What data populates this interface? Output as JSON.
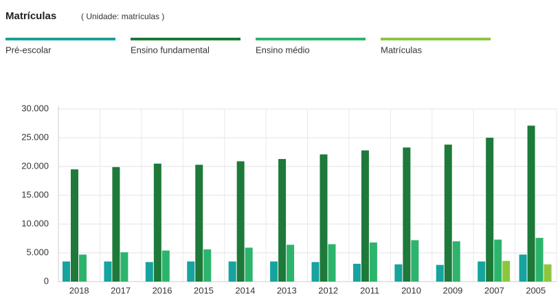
{
  "chart_data": {
    "type": "bar",
    "title": "Matrículas",
    "subtitle": "( Unidade: matrículas )",
    "categories": [
      "2018",
      "2017",
      "2016",
      "2015",
      "2014",
      "2013",
      "2012",
      "2011",
      "2010",
      "2009",
      "2007",
      "2005"
    ],
    "series": [
      {
        "name": "Pré-escolar",
        "color": "#17a39e",
        "values": [
          3500,
          3500,
          3400,
          3500,
          3500,
          3500,
          3400,
          3100,
          3000,
          2900,
          3500,
          4700
        ]
      },
      {
        "name": "Ensino fundamental",
        "color": "#1d7a3a",
        "values": [
          19500,
          19900,
          20500,
          20300,
          20900,
          21300,
          22100,
          22800,
          23300,
          23800,
          25000,
          27100
        ]
      },
      {
        "name": "Ensino médio",
        "color": "#2db46c",
        "values": [
          4700,
          5100,
          5400,
          5600,
          5900,
          6400,
          6500,
          6800,
          7200,
          7000,
          7300,
          7600
        ]
      },
      {
        "name": "Matrículas",
        "color": "#8cc63f",
        "values": [
          null,
          null,
          null,
          null,
          null,
          null,
          null,
          null,
          null,
          null,
          3600,
          3000
        ]
      }
    ],
    "ylim": [
      0,
      30000
    ],
    "yticks": [
      0,
      {
        "value": 5000,
        "label": "5.000"
      },
      {
        "value": 10000,
        "label": "10.000"
      },
      {
        "value": 15000,
        "label": "15.000"
      },
      {
        "value": 20000,
        "label": "20.000"
      },
      {
        "value": 25000,
        "label": "25.000"
      },
      {
        "value": 30000,
        "label": "30.000"
      }
    ],
    "grid": true
  }
}
